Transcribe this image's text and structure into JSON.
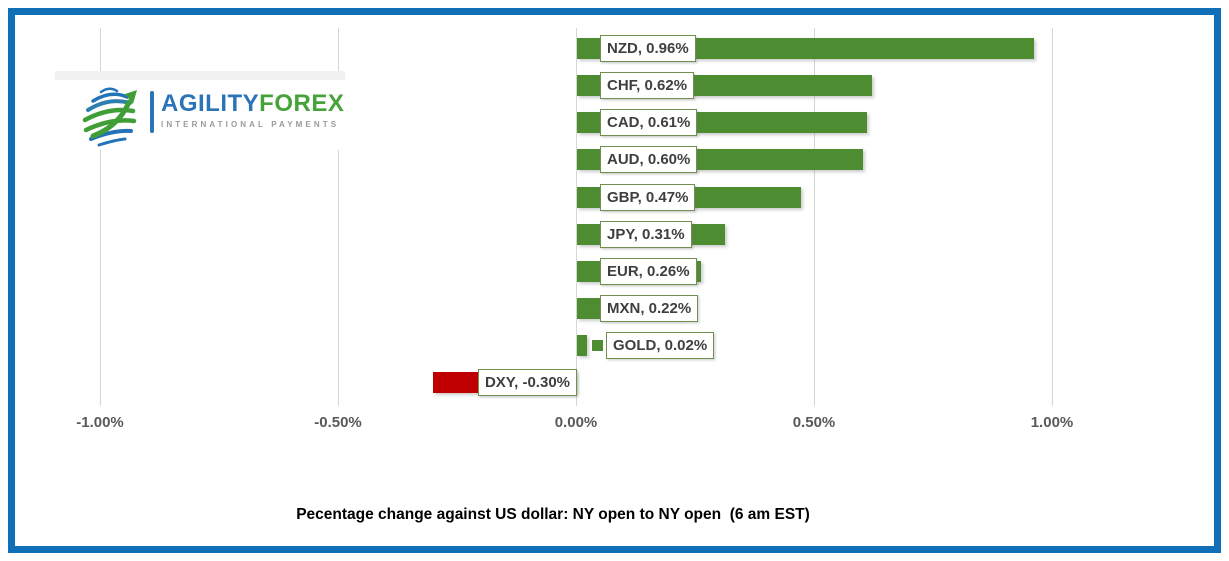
{
  "frame": {
    "border_color": "#0f6fb7"
  },
  "brand": {
    "name_primary": "AGILITY",
    "name_secondary": "FOREX",
    "tagline": "INTERNATIONAL PAYMENTS",
    "primary_color": "#2b74b8",
    "secondary_color": "#45a33a",
    "tagline_color": "#9a9a9a"
  },
  "chart_data": {
    "type": "bar",
    "orientation": "horizontal",
    "title": "Pecentage change against US dollar: NY open to NY open  (6 am EST)",
    "categories": [
      "NZD",
      "CHF",
      "CAD",
      "AUD",
      "GBP",
      "JPY",
      "EUR",
      "MXN",
      "GOLD",
      "DXY"
    ],
    "values": [
      0.96,
      0.62,
      0.61,
      0.6,
      0.47,
      0.31,
      0.26,
      0.22,
      0.02,
      -0.3
    ],
    "bar_labels": [
      "NZD, 0.96%",
      "CHF, 0.62%",
      "CAD, 0.61%",
      "AUD, 0.60%",
      "GBP, 0.47%",
      "JPY, 0.31%",
      "EUR, 0.26%",
      "MXN, 0.22%",
      "GOLD, 0.02%",
      "DXY, -0.30%"
    ],
    "x_ticks": [
      {
        "value": -1.0,
        "label": "-1.00%"
      },
      {
        "value": -0.5,
        "label": "-0.50%"
      },
      {
        "value": 0.0,
        "label": "0.00%"
      },
      {
        "value": 0.5,
        "label": "0.50%"
      },
      {
        "value": 1.0,
        "label": "1.00%"
      }
    ],
    "xlim": [
      -1.15,
      1.3
    ],
    "gridlines": true,
    "legend": "none",
    "positive_color": "#4e8c31",
    "negative_color": "#c00000",
    "label_box_border_color": "#70914e",
    "axis_text_color": "#595959",
    "marker_categories": [
      "GOLD"
    ]
  }
}
